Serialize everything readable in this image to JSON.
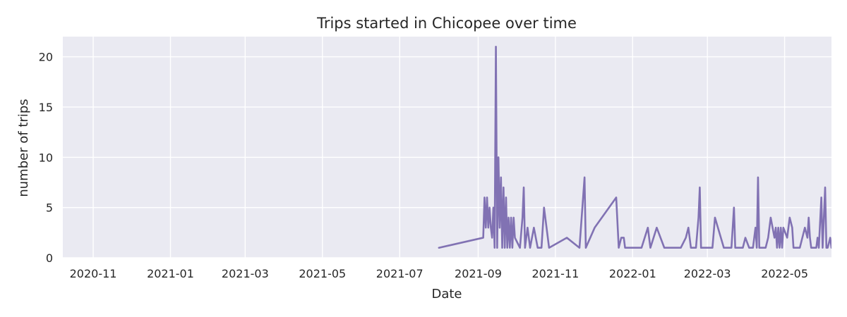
{
  "chart_data": {
    "type": "line",
    "title": "Trips started in Chicopee over time",
    "xlabel": "Date",
    "ylabel": "number of trips",
    "x_type": "date",
    "xlim": [
      "2020-10-08",
      "2022-06-07"
    ],
    "ylim": [
      0,
      22
    ],
    "grid": true,
    "x_ticks": [
      "2020-11-01",
      "2021-01-01",
      "2021-03-01",
      "2021-05-01",
      "2021-07-01",
      "2021-09-01",
      "2021-11-01",
      "2022-01-01",
      "2022-03-01",
      "2022-05-01"
    ],
    "x_tick_labels": [
      "2020-11",
      "2021-01",
      "2021-03",
      "2021-05",
      "2021-07",
      "2021-09",
      "2021-11",
      "2022-01",
      "2022-03",
      "2022-05"
    ],
    "y_ticks": [
      0,
      5,
      10,
      15,
      20
    ],
    "y_tick_labels": [
      "0",
      "5",
      "10",
      "15",
      "20"
    ],
    "series": [
      {
        "color": "#8172b3",
        "points": [
          [
            "2021-08-01",
            1
          ],
          [
            "2021-09-05",
            2
          ],
          [
            "2021-09-06",
            6
          ],
          [
            "2021-09-07",
            3
          ],
          [
            "2021-09-08",
            6
          ],
          [
            "2021-09-09",
            3
          ],
          [
            "2021-09-10",
            5
          ],
          [
            "2021-09-11",
            3
          ],
          [
            "2021-09-12",
            2
          ],
          [
            "2021-09-13",
            5
          ],
          [
            "2021-09-14",
            1
          ],
          [
            "2021-09-15",
            21
          ],
          [
            "2021-09-16",
            1
          ],
          [
            "2021-09-17",
            10
          ],
          [
            "2021-09-18",
            3
          ],
          [
            "2021-09-19",
            8
          ],
          [
            "2021-09-20",
            1
          ],
          [
            "2021-09-21",
            7
          ],
          [
            "2021-09-22",
            1
          ],
          [
            "2021-09-23",
            6
          ],
          [
            "2021-09-24",
            1
          ],
          [
            "2021-09-25",
            4
          ],
          [
            "2021-09-26",
            1
          ],
          [
            "2021-09-27",
            4
          ],
          [
            "2021-09-28",
            1
          ],
          [
            "2021-09-29",
            4
          ],
          [
            "2021-09-30",
            2
          ],
          [
            "2021-10-04",
            1
          ],
          [
            "2021-10-06",
            4
          ],
          [
            "2021-10-07",
            7
          ],
          [
            "2021-10-08",
            1
          ],
          [
            "2021-10-10",
            3
          ],
          [
            "2021-10-12",
            1
          ],
          [
            "2021-10-15",
            3
          ],
          [
            "2021-10-18",
            1
          ],
          [
            "2021-10-21",
            1
          ],
          [
            "2021-10-23",
            5
          ],
          [
            "2021-10-27",
            1
          ],
          [
            "2021-11-10",
            2
          ],
          [
            "2021-11-20",
            1
          ],
          [
            "2021-11-24",
            8
          ],
          [
            "2021-11-25",
            1
          ],
          [
            "2021-12-02",
            3
          ],
          [
            "2021-12-19",
            6
          ],
          [
            "2021-12-21",
            1
          ],
          [
            "2021-12-23",
            2
          ],
          [
            "2021-12-25",
            2
          ],
          [
            "2021-12-26",
            1
          ],
          [
            "2022-01-08",
            1
          ],
          [
            "2022-01-13",
            3
          ],
          [
            "2022-01-15",
            1
          ],
          [
            "2022-01-20",
            3
          ],
          [
            "2022-01-26",
            1
          ],
          [
            "2022-02-08",
            1
          ],
          [
            "2022-02-12",
            2
          ],
          [
            "2022-02-14",
            3
          ],
          [
            "2022-02-16",
            1
          ],
          [
            "2022-02-20",
            1
          ],
          [
            "2022-02-22",
            4
          ],
          [
            "2022-02-23",
            7
          ],
          [
            "2022-02-24",
            1
          ],
          [
            "2022-03-05",
            1
          ],
          [
            "2022-03-07",
            4
          ],
          [
            "2022-03-14",
            1
          ],
          [
            "2022-03-20",
            1
          ],
          [
            "2022-03-22",
            5
          ],
          [
            "2022-03-23",
            1
          ],
          [
            "2022-03-29",
            1
          ],
          [
            "2022-03-31",
            2
          ],
          [
            "2022-04-03",
            1
          ],
          [
            "2022-04-06",
            1
          ],
          [
            "2022-04-08",
            3
          ],
          [
            "2022-04-09",
            1
          ],
          [
            "2022-04-10",
            8
          ],
          [
            "2022-04-11",
            1
          ],
          [
            "2022-04-16",
            1
          ],
          [
            "2022-04-18",
            2
          ],
          [
            "2022-04-20",
            4
          ],
          [
            "2022-04-23",
            2
          ],
          [
            "2022-04-24",
            3
          ],
          [
            "2022-04-25",
            1
          ],
          [
            "2022-04-26",
            3
          ],
          [
            "2022-04-27",
            1
          ],
          [
            "2022-04-28",
            3
          ],
          [
            "2022-04-29",
            1
          ],
          [
            "2022-04-30",
            3
          ],
          [
            "2022-05-03",
            2
          ],
          [
            "2022-05-05",
            4
          ],
          [
            "2022-05-07",
            3
          ],
          [
            "2022-05-08",
            1
          ],
          [
            "2022-05-13",
            1
          ],
          [
            "2022-05-17",
            3
          ],
          [
            "2022-05-19",
            2
          ],
          [
            "2022-05-20",
            4
          ],
          [
            "2022-05-21",
            2
          ],
          [
            "2022-05-22",
            1
          ],
          [
            "2022-05-26",
            1
          ],
          [
            "2022-05-27",
            2
          ],
          [
            "2022-05-28",
            1
          ],
          [
            "2022-05-30",
            6
          ],
          [
            "2022-05-31",
            1
          ],
          [
            "2022-06-02",
            7
          ],
          [
            "2022-06-03",
            1
          ],
          [
            "2022-06-04",
            1
          ],
          [
            "2022-06-06",
            2
          ],
          [
            "2022-06-07",
            1
          ],
          [
            "2022-06-08",
            1
          ]
        ]
      }
    ]
  }
}
